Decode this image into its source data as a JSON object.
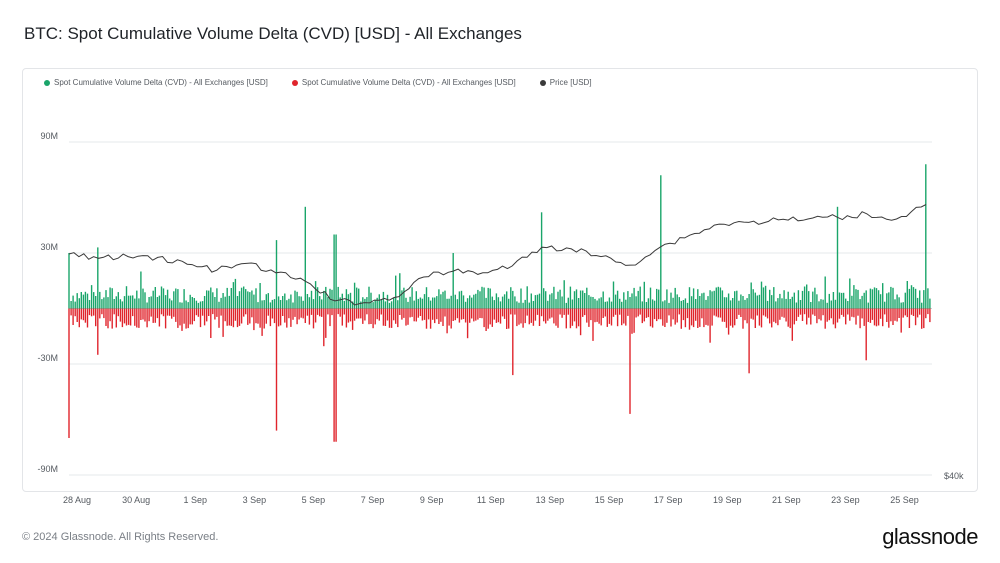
{
  "header": {
    "title": "BTC: Spot Cumulative Volume Delta (CVD) [USD] - All Exchanges"
  },
  "legend": [
    {
      "label": "Spot Cumulative Volume Delta (CVD) - All Exchanges [USD]",
      "color": "#1aa56a"
    },
    {
      "label": "Spot Cumulative Volume Delta (CVD) - All Exchanges [USD]",
      "color": "#e0242c"
    },
    {
      "label": "Price [USD]",
      "color": "#3a3a3a"
    }
  ],
  "footer": {
    "copyright": "© 2024 Glassnode. All Rights Reserved.",
    "brand": "glassnode"
  },
  "chart_data": {
    "type": "bar",
    "title": "BTC: Spot Cumulative Volume Delta (CVD) [USD] - All Exchanges",
    "y_left": {
      "ticks": [
        "90M",
        "30M",
        "-30M",
        "-90M"
      ],
      "values": [
        90,
        30,
        -30,
        -90
      ],
      "unit": "M USD",
      "ylim": [
        -90,
        90
      ]
    },
    "y_right": {
      "ticks": [
        "$40k"
      ]
    },
    "x_ticks": [
      "28 Aug",
      "30 Aug",
      "1 Sep",
      "3 Sep",
      "5 Sep",
      "7 Sep",
      "9 Sep",
      "11 Sep",
      "13 Sep",
      "15 Sep",
      "17 Sep",
      "19 Sep",
      "21 Sep",
      "23 Sep",
      "25 Sep"
    ],
    "grid": true,
    "legend_position": "top-left",
    "series": [
      {
        "name": "Spot Cumulative Volume Delta (CVD) - All Exchanges [USD]",
        "color": "#1aa56a",
        "sign": "positive",
        "peaks": [
          {
            "date": "28 Aug",
            "value": 30
          },
          {
            "date": "29 Aug",
            "value": 33
          },
          {
            "date": "4 Sep",
            "value": 37
          },
          {
            "date": "5 Sep",
            "value": 55
          },
          {
            "date": "6 Sep",
            "value": 40
          },
          {
            "date": "10 Sep",
            "value": 30
          },
          {
            "date": "13 Sep",
            "value": 52
          },
          {
            "date": "17 Sep",
            "value": 72
          },
          {
            "date": "23 Sep",
            "value": 55
          },
          {
            "date": "26 Sep",
            "value": 78
          }
        ]
      },
      {
        "name": "Spot Cumulative Volume Delta (CVD) - All Exchanges [USD]",
        "color": "#e0242c",
        "sign": "negative",
        "peaks": [
          {
            "date": "28 Aug",
            "value": -70
          },
          {
            "date": "29 Aug",
            "value": -25
          },
          {
            "date": "4 Sep",
            "value": -66
          },
          {
            "date": "6 Sep",
            "value": -72
          },
          {
            "date": "12 Sep",
            "value": -36
          },
          {
            "date": "16 Sep",
            "value": -57
          },
          {
            "date": "20 Sep",
            "value": -35
          },
          {
            "date": "24 Sep",
            "value": -28
          }
        ]
      },
      {
        "name": "Price [USD]",
        "color": "#3a3a3a",
        "type": "line",
        "axis": "right",
        "points": [
          {
            "date": "28 Aug",
            "value": 59500
          },
          {
            "date": "29 Aug",
            "value": 59000
          },
          {
            "date": "30 Aug",
            "value": 59200
          },
          {
            "date": "31 Aug",
            "value": 59100
          },
          {
            "date": "1 Sep",
            "value": 58300
          },
          {
            "date": "2 Sep",
            "value": 57600
          },
          {
            "date": "3 Sep",
            "value": 58400
          },
          {
            "date": "4 Sep",
            "value": 57300
          },
          {
            "date": "5 Sep",
            "value": 56300
          },
          {
            "date": "6 Sep",
            "value": 54000
          },
          {
            "date": "7 Sep",
            "value": 53800
          },
          {
            "date": "8 Sep",
            "value": 54400
          },
          {
            "date": "9 Sep",
            "value": 56800
          },
          {
            "date": "10 Sep",
            "value": 57500
          },
          {
            "date": "11 Sep",
            "value": 57300
          },
          {
            "date": "12 Sep",
            "value": 58100
          },
          {
            "date": "13 Sep",
            "value": 60300
          },
          {
            "date": "14 Sep",
            "value": 60100
          },
          {
            "date": "15 Sep",
            "value": 59200
          },
          {
            "date": "16 Sep",
            "value": 58200
          },
          {
            "date": "17 Sep",
            "value": 60300
          },
          {
            "date": "18 Sep",
            "value": 61700
          },
          {
            "date": "19 Sep",
            "value": 63000
          },
          {
            "date": "20 Sep",
            "value": 63200
          },
          {
            "date": "21 Sep",
            "value": 63500
          },
          {
            "date": "22 Sep",
            "value": 63600
          },
          {
            "date": "23 Sep",
            "value": 63800
          },
          {
            "date": "24 Sep",
            "value": 64200
          },
          {
            "date": "25 Sep",
            "value": 63600
          },
          {
            "date": "26 Sep",
            "value": 65300
          }
        ]
      }
    ]
  }
}
